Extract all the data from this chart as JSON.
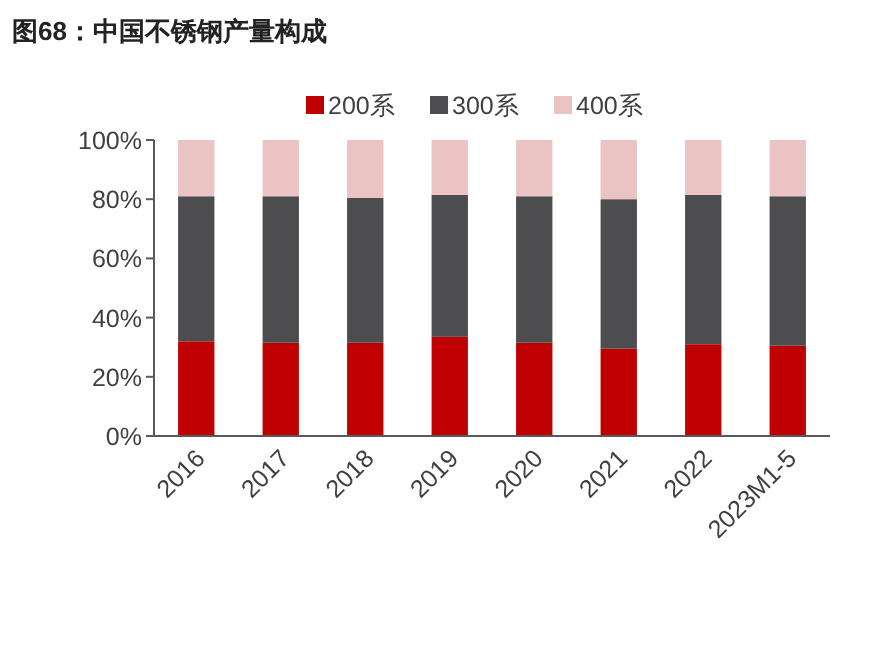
{
  "chart_data": {
    "type": "bar",
    "title": "图68：中国不锈钢产量构成",
    "stacked": true,
    "legend": "top",
    "categories": [
      "2016",
      "2017",
      "2018",
      "2019",
      "2020",
      "2021",
      "2022",
      "2023M1-5"
    ],
    "series": [
      {
        "name": "200系",
        "color": "#c00000",
        "values": [
          32,
          31.5,
          31.5,
          33.5,
          31.5,
          29.5,
          31,
          30.5
        ]
      },
      {
        "name": "300系",
        "color": "#4d4d4f",
        "values": [
          49,
          49.5,
          49,
          48,
          49.5,
          50.5,
          50.5,
          50.5
        ]
      },
      {
        "name": "400系",
        "color": "#ebc3c3",
        "values": [
          19,
          19,
          19.5,
          18.5,
          19,
          20,
          18.5,
          19
        ]
      }
    ],
    "ylim": [
      0,
      100
    ],
    "yticks": [
      {
        "value": 0,
        "label": "0%"
      },
      {
        "value": 20,
        "label": "20%"
      },
      {
        "value": 40,
        "label": "40%"
      },
      {
        "value": 60,
        "label": "60%"
      },
      {
        "value": 80,
        "label": "80%"
      },
      {
        "value": 100,
        "label": "100%"
      }
    ]
  }
}
